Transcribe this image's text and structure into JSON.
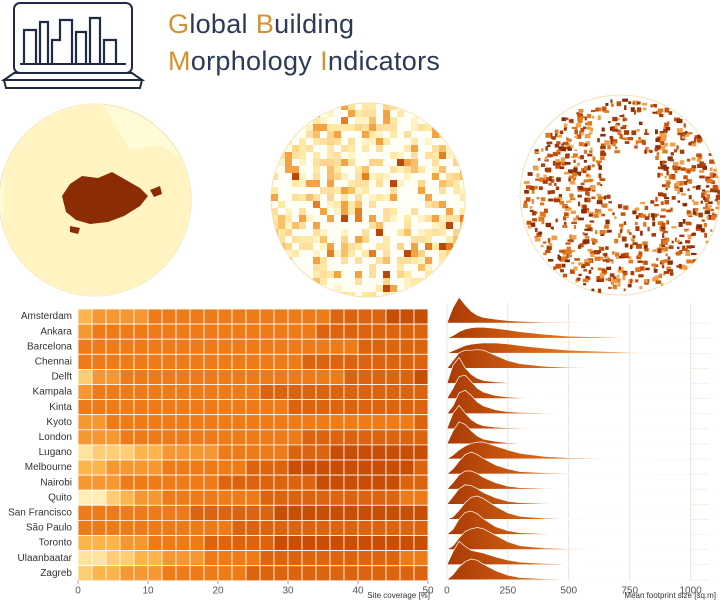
{
  "header": {
    "title_lines": [
      [
        "Global",
        "Building"
      ],
      [
        "Morphology",
        "Indicators"
      ]
    ]
  },
  "chart_data": [
    {
      "type": "heatmap",
      "categories": [
        "Amsterdam",
        "Ankara",
        "Barcelona",
        "Chennai",
        "Delft",
        "Kampala",
        "Kinta",
        "Kyoto",
        "London",
        "Lugano",
        "Melbourne",
        "Nairobi",
        "Quito",
        "San Francisco",
        "São Paulo",
        "Toronto",
        "Ulaanbaatar",
        "Zagreb"
      ],
      "bins": [
        0,
        2,
        4,
        6,
        8,
        10,
        12,
        14,
        16,
        18,
        20,
        22,
        24,
        26,
        28,
        30,
        32,
        34,
        36,
        38,
        40,
        42,
        44,
        46,
        48,
        50
      ],
      "values": [
        [
          4,
          5,
          5,
          5,
          5,
          6,
          6,
          6,
          6,
          6,
          6,
          6,
          6,
          6,
          6,
          6,
          6,
          6,
          7,
          7,
          7,
          7,
          8,
          8,
          8
        ],
        [
          5,
          6,
          6,
          6,
          6,
          6,
          6,
          6,
          6,
          6,
          6,
          6,
          6,
          6,
          6,
          6,
          6,
          7,
          7,
          7,
          7,
          7,
          7,
          7,
          7
        ],
        [
          6,
          6,
          6,
          6,
          6,
          6,
          6,
          6,
          6,
          6,
          6,
          6,
          6,
          6,
          6,
          6,
          6,
          6,
          6,
          6,
          7,
          7,
          7,
          7,
          7
        ],
        [
          6,
          6,
          6,
          6,
          6,
          6,
          6,
          6,
          6,
          6,
          6,
          6,
          6,
          6,
          6,
          6,
          7,
          7,
          7,
          7,
          7,
          7,
          7,
          7,
          7
        ],
        [
          3,
          5,
          5,
          6,
          6,
          6,
          6,
          6,
          6,
          6,
          6,
          6,
          6,
          6,
          6,
          6,
          6,
          6,
          6,
          7,
          7,
          7,
          7,
          7,
          8
        ],
        [
          5,
          6,
          6,
          6,
          6,
          6,
          6,
          6,
          6,
          6,
          6,
          6,
          6,
          7,
          7,
          7,
          7,
          7,
          7,
          7,
          7,
          7,
          7,
          7,
          7
        ],
        [
          6,
          6,
          6,
          6,
          6,
          6,
          6,
          6,
          6,
          6,
          6,
          6,
          6,
          6,
          6,
          7,
          7,
          7,
          7,
          7,
          7,
          7,
          7,
          7,
          7
        ],
        [
          5,
          5,
          6,
          6,
          6,
          6,
          6,
          6,
          6,
          6,
          6,
          6,
          6,
          6,
          6,
          6,
          6,
          6,
          6,
          6,
          6,
          6,
          6,
          6,
          7
        ],
        [
          5,
          5,
          5,
          6,
          6,
          6,
          6,
          6,
          6,
          6,
          6,
          6,
          6,
          6,
          6,
          6,
          7,
          7,
          7,
          7,
          7,
          7,
          7,
          7,
          7
        ],
        [
          2,
          3,
          3,
          3,
          4,
          4,
          5,
          5,
          5,
          5,
          6,
          6,
          6,
          6,
          6,
          7,
          7,
          7,
          8,
          8,
          8,
          8,
          8,
          8,
          8
        ],
        [
          4,
          4,
          5,
          5,
          5,
          5,
          6,
          6,
          6,
          6,
          6,
          6,
          7,
          7,
          7,
          8,
          8,
          8,
          8,
          8,
          8,
          8,
          8,
          8,
          7
        ],
        [
          5,
          5,
          5,
          6,
          6,
          6,
          6,
          6,
          6,
          6,
          7,
          7,
          7,
          7,
          7,
          7,
          7,
          8,
          8,
          8,
          8,
          8,
          8,
          7,
          7
        ],
        [
          1,
          1,
          3,
          4,
          5,
          5,
          6,
          6,
          6,
          6,
          6,
          6,
          6,
          7,
          7,
          7,
          7,
          7,
          7,
          7,
          7,
          7,
          7,
          6,
          6
        ],
        [
          6,
          6,
          6,
          6,
          6,
          6,
          6,
          6,
          7,
          7,
          7,
          7,
          7,
          7,
          8,
          8,
          8,
          8,
          8,
          8,
          8,
          8,
          8,
          8,
          8
        ],
        [
          6,
          6,
          6,
          6,
          6,
          6,
          6,
          6,
          6,
          6,
          6,
          7,
          7,
          7,
          7,
          7,
          7,
          7,
          7,
          7,
          7,
          7,
          7,
          7,
          7
        ],
        [
          4,
          4,
          4,
          5,
          5,
          6,
          6,
          6,
          6,
          7,
          7,
          7,
          7,
          7,
          8,
          8,
          8,
          8,
          8,
          8,
          8,
          8,
          8,
          8,
          8
        ],
        [
          2,
          2,
          3,
          3,
          4,
          4,
          5,
          5,
          5,
          6,
          6,
          6,
          6,
          7,
          7,
          7,
          7,
          7,
          7,
          7,
          7,
          7,
          7,
          6,
          6
        ],
        [
          3,
          4,
          4,
          5,
          5,
          5,
          6,
          6,
          6,
          6,
          6,
          6,
          7,
          7,
          7,
          7,
          7,
          7,
          7,
          7,
          7,
          7,
          7,
          7,
          7
        ]
      ],
      "zlim": [
        0,
        10
      ],
      "colormap": [
        "#fffbd0",
        "#ffe39a",
        "#fdb44a",
        "#ef7a18",
        "#c84e06",
        "#7a2a02"
      ],
      "xlim": [
        0,
        50
      ],
      "xticks": [
        0,
        10,
        20,
        30,
        40,
        50
      ],
      "xlabel": "Site coverage [%]"
    },
    {
      "type": "ridgeline",
      "x": [
        0,
        25,
        50,
        75,
        100,
        125,
        150,
        200,
        250,
        300,
        400,
        500,
        750,
        1000
      ],
      "values": [
        [
          0,
          0.6,
          1,
          0.7,
          0.45,
          0.3,
          0.22,
          0.15,
          0.1,
          0.07,
          0.04,
          0.03,
          0.01,
          0
        ],
        [
          0,
          0.1,
          0.25,
          0.35,
          0.4,
          0.42,
          0.42,
          0.38,
          0.32,
          0.25,
          0.15,
          0.08,
          0.02,
          0
        ],
        [
          0,
          0.1,
          0.2,
          0.3,
          0.35,
          0.38,
          0.4,
          0.4,
          0.36,
          0.3,
          0.2,
          0.12,
          0.04,
          0.01
        ],
        [
          0,
          0.3,
          0.6,
          0.7,
          0.7,
          0.72,
          0.7,
          0.5,
          0.3,
          0.18,
          0.08,
          0.04,
          0.01,
          0
        ],
        [
          0,
          0.7,
          1,
          0.6,
          0.35,
          0.2,
          0.12,
          0.06,
          0.03,
          0.02,
          0.01,
          0,
          0,
          0
        ],
        [
          0,
          0.4,
          0.85,
          0.9,
          0.65,
          0.4,
          0.25,
          0.12,
          0.06,
          0.03,
          0.01,
          0,
          0,
          0
        ],
        [
          0,
          0.3,
          0.8,
          0.9,
          0.7,
          0.45,
          0.3,
          0.15,
          0.08,
          0.05,
          0.03,
          0.02,
          0.01,
          0
        ],
        [
          0,
          0.6,
          0.9,
          0.6,
          0.35,
          0.2,
          0.12,
          0.06,
          0.04,
          0.03,
          0.02,
          0.01,
          0.01,
          0
        ],
        [
          0,
          0.5,
          0.85,
          0.75,
          0.5,
          0.3,
          0.18,
          0.1,
          0.05,
          0.03,
          0.02,
          0.01,
          0,
          0
        ],
        [
          0,
          0.15,
          0.35,
          0.5,
          0.6,
          0.65,
          0.65,
          0.5,
          0.35,
          0.22,
          0.1,
          0.05,
          0.02,
          0.01
        ],
        [
          0,
          0.2,
          0.5,
          0.75,
          0.85,
          0.75,
          0.6,
          0.35,
          0.2,
          0.1,
          0.05,
          0.03,
          0.02,
          0.01
        ],
        [
          0,
          0.25,
          0.55,
          0.7,
          0.7,
          0.6,
          0.45,
          0.25,
          0.12,
          0.06,
          0.03,
          0.02,
          0.01,
          0
        ],
        [
          0,
          0.3,
          0.6,
          0.75,
          0.72,
          0.6,
          0.45,
          0.25,
          0.12,
          0.06,
          0.03,
          0.01,
          0,
          0
        ],
        [
          0,
          0.1,
          0.35,
          0.65,
          0.85,
          0.9,
          0.8,
          0.5,
          0.25,
          0.12,
          0.05,
          0.02,
          0.01,
          0
        ],
        [
          0,
          0.2,
          0.6,
          0.85,
          0.9,
          0.8,
          0.6,
          0.3,
          0.15,
          0.07,
          0.03,
          0.01,
          0,
          0
        ],
        [
          0,
          0.15,
          0.45,
          0.7,
          0.8,
          0.85,
          0.8,
          0.55,
          0.3,
          0.15,
          0.06,
          0.03,
          0.01,
          0
        ],
        [
          0,
          0.5,
          0.9,
          0.7,
          0.55,
          0.5,
          0.45,
          0.3,
          0.18,
          0.1,
          0.05,
          0.02,
          0,
          0
        ],
        [
          0,
          0.2,
          0.5,
          0.7,
          0.8,
          0.75,
          0.6,
          0.35,
          0.18,
          0.09,
          0.04,
          0.02,
          0.01,
          0
        ]
      ],
      "gradient": [
        "#a83a05",
        "#e8731a",
        "#fde3b0"
      ],
      "grid": true,
      "xlim": [
        -20,
        1100
      ],
      "xticks": [
        0,
        250,
        500,
        750,
        1000
      ],
      "xlabel": "Mean footprint size [sq.m]"
    }
  ]
}
